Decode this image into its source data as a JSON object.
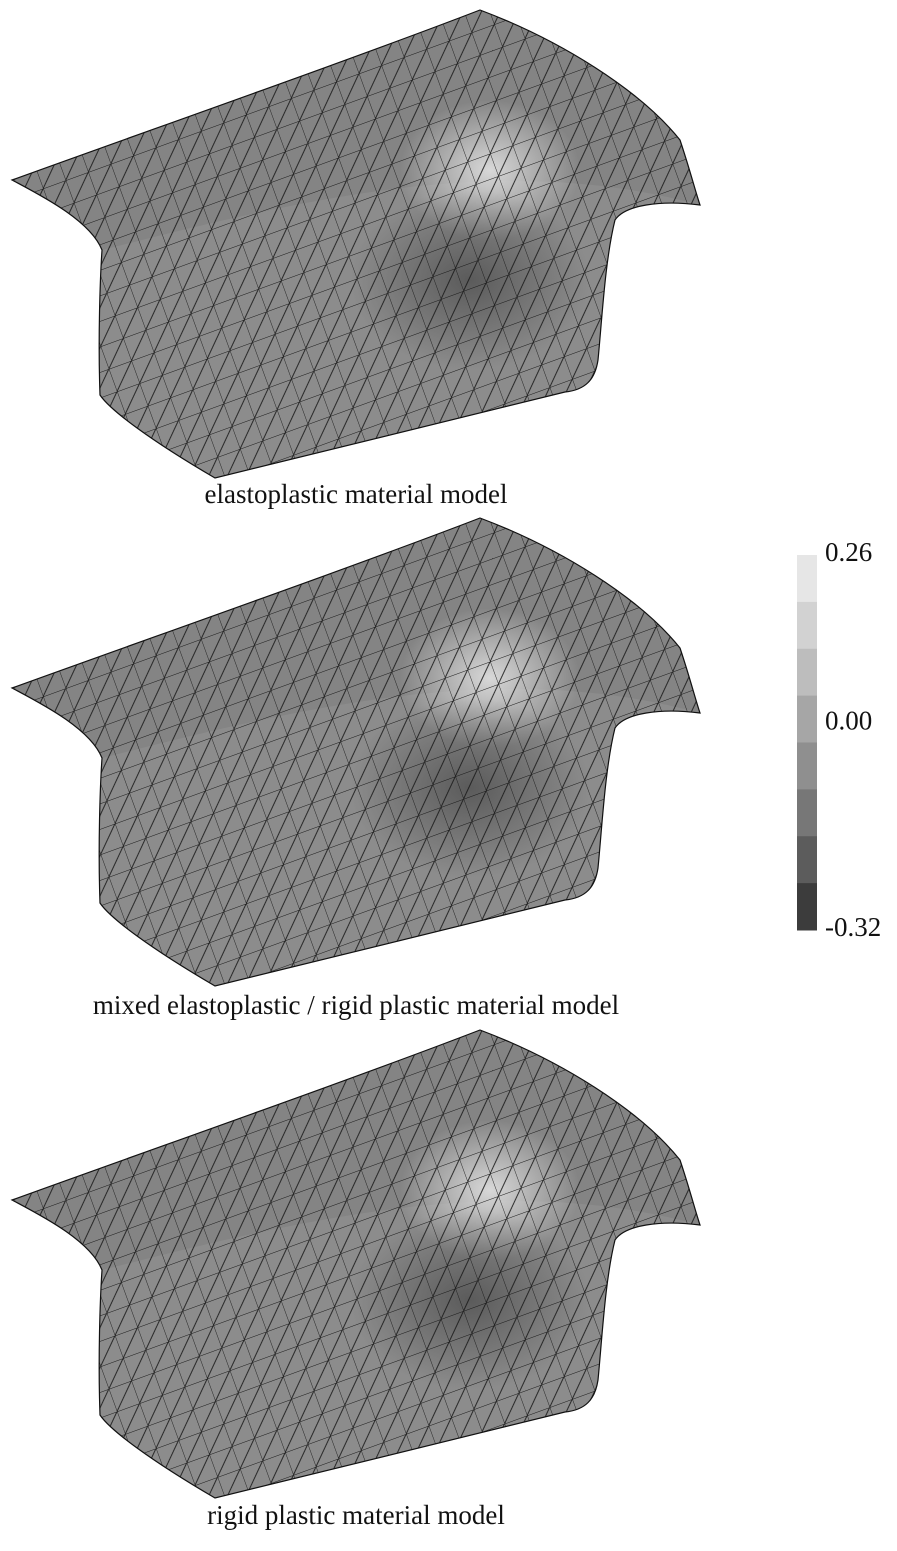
{
  "panels": [
    {
      "caption": "elastoplastic material model"
    },
    {
      "caption": "mixed elastoplastic / rigid plastic material model"
    },
    {
      "caption": "rigid plastic material model"
    }
  ],
  "colorbar": {
    "range": [
      -0.32,
      0.26
    ],
    "ticks": [
      0.26,
      {
        "value": 0,
        "label": "0.00"
      },
      -0.32
    ],
    "colors": [
      "#e6e6e6",
      "#d2d2d2",
      "#bdbdbd",
      "#a6a6a6",
      "#8f8f8f",
      "#777777",
      "#5c5c5c",
      "#3c3c3c"
    ]
  }
}
